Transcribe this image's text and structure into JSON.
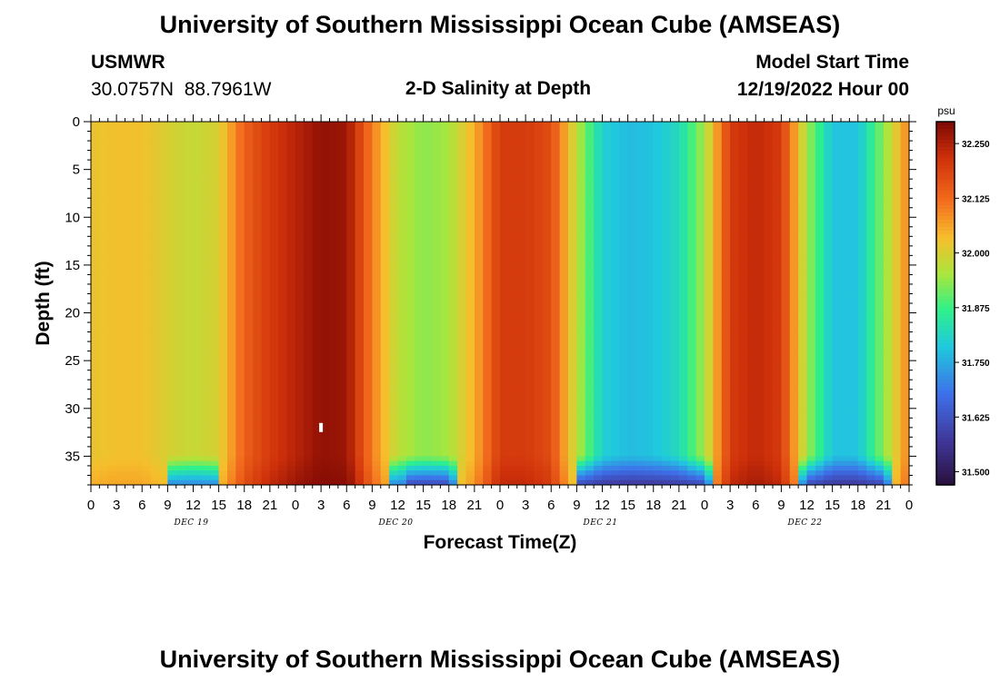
{
  "page": {
    "title": "University of Southern Mississippi Ocean Cube (AMSEAS)",
    "footer_title": "University of Southern Mississippi Ocean Cube (AMSEAS)",
    "station": "USMWR",
    "coords": "30.0757N  88.7961W",
    "subtitle": "2-D Salinity at Depth",
    "model_start_label": "Model Start Time",
    "model_start_value": "12/19/2022 Hour 00"
  },
  "chart_data": {
    "type": "heatmap",
    "title": "2-D Salinity at Depth",
    "xlabel": "Forecast Time(Z)",
    "ylabel": "Depth (ft)",
    "x_range_hours": [
      0,
      96
    ],
    "x_tick_labels": [
      "0",
      "3",
      "6",
      "9",
      "12",
      "15",
      "18",
      "21",
      "0",
      "3",
      "6",
      "9",
      "12",
      "15",
      "18",
      "21",
      "0",
      "3",
      "6",
      "9",
      "12",
      "15",
      "18",
      "21",
      "0",
      "3",
      "6",
      "9",
      "12",
      "15",
      "18",
      "21",
      "0"
    ],
    "x_day_labels": [
      "DEC 19",
      "DEC 20",
      "DEC 21",
      "DEC 22"
    ],
    "y_range_ft": [
      0,
      38
    ],
    "y_ticks": [
      0,
      5,
      10,
      15,
      20,
      25,
      30,
      35
    ],
    "colorbar": {
      "unit": "psu",
      "min": 31.47,
      "max": 32.3,
      "tick_labels": [
        "32.250",
        "32.125",
        "32.000",
        "31.875",
        "31.750",
        "31.625",
        "31.500"
      ],
      "tick_values": [
        32.25,
        32.125,
        32.0,
        31.875,
        31.75,
        31.625,
        31.5
      ]
    },
    "surface_salinity_profile": {
      "hours": [
        0,
        3,
        6,
        9,
        12,
        15,
        18,
        21,
        24,
        27,
        30,
        33,
        36,
        39,
        42,
        45,
        48,
        51,
        54,
        57,
        60,
        63,
        66,
        69,
        72,
        75,
        78,
        81,
        84,
        87,
        90,
        93,
        96
      ],
      "values": [
        32.02,
        32.03,
        32.03,
        32.0,
        31.98,
        32.0,
        32.14,
        32.2,
        32.24,
        32.28,
        32.27,
        32.1,
        31.97,
        31.93,
        31.95,
        32.05,
        32.2,
        32.2,
        32.17,
        31.97,
        31.8,
        31.77,
        31.78,
        31.82,
        31.95,
        32.2,
        32.23,
        32.2,
        31.95,
        31.78,
        31.78,
        31.93,
        32.1
      ]
    },
    "near_bottom_depth_ft": 35,
    "bottom_minimum_salinity": 31.52,
    "marker": {
      "hour": 27,
      "depth_ft": 32
    }
  }
}
